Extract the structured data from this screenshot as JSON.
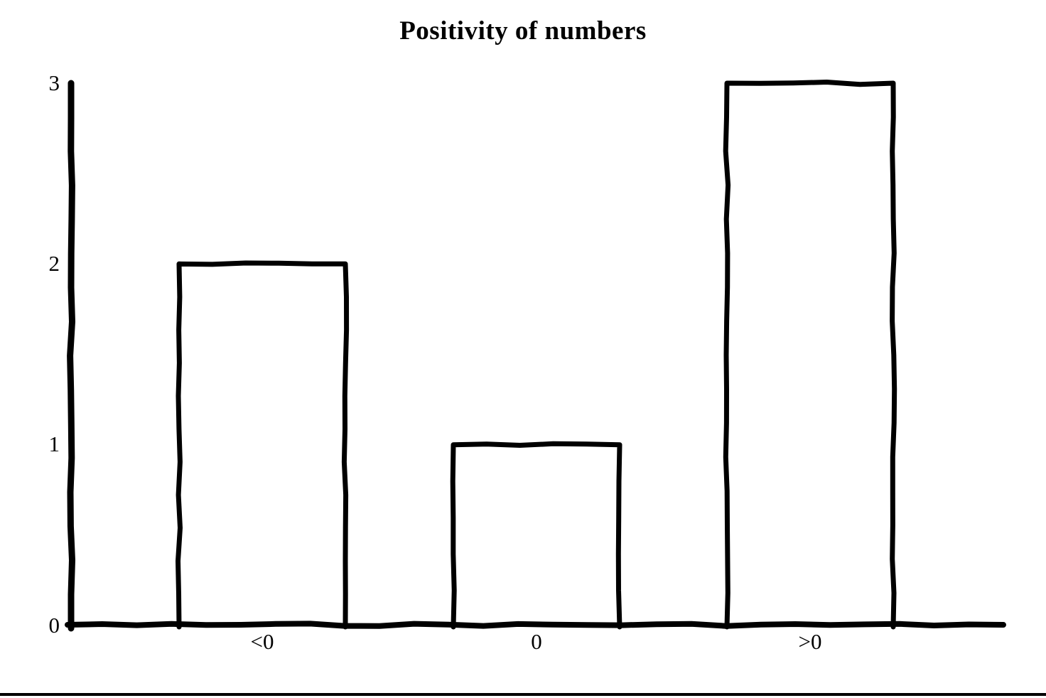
{
  "chart_data": {
    "type": "bar",
    "title": "Positivity of numbers",
    "categories": [
      "<0",
      "0",
      ">0"
    ],
    "values": [
      2,
      1,
      3
    ],
    "xlabel": "",
    "ylabel": "",
    "yticks": [
      0,
      1,
      2,
      3
    ],
    "ylim": [
      0,
      3
    ],
    "grid": false,
    "legend": false,
    "style": "hand-drawn monochrome outline bars",
    "colors": {
      "line": "#000000",
      "bar_fill": "#ffffff",
      "background": "#ffffff"
    }
  }
}
